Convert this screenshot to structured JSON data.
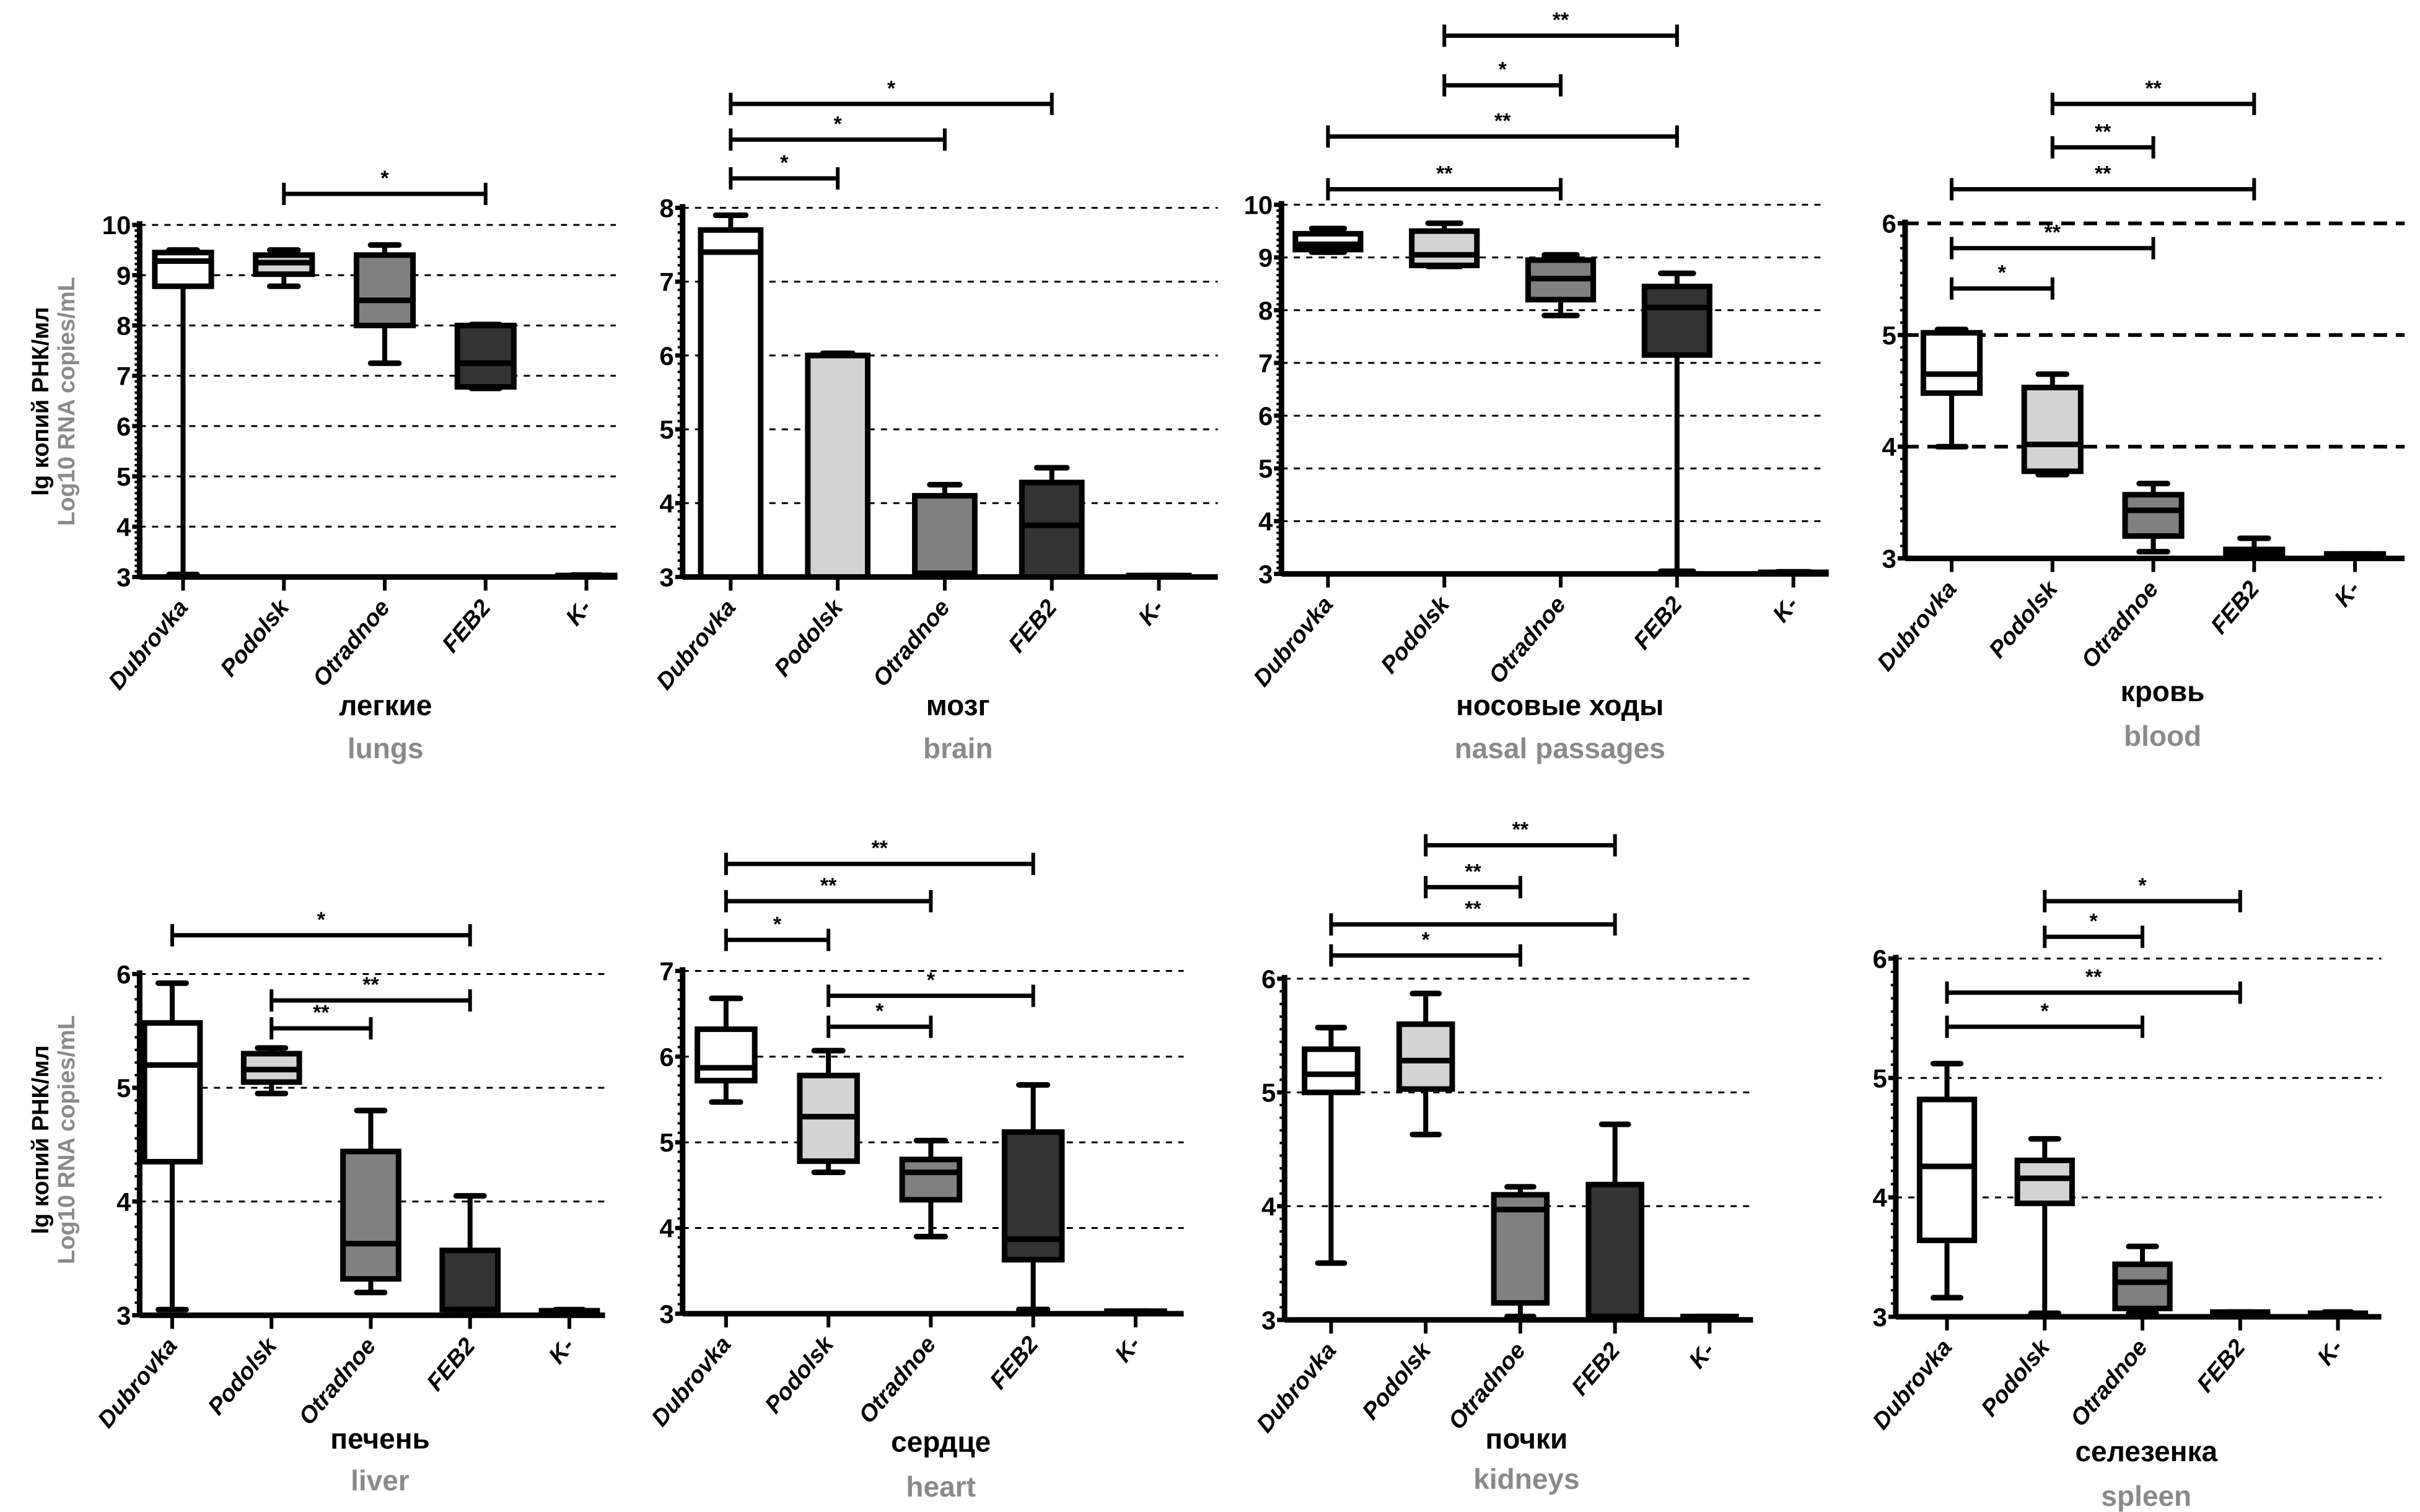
{
  "figure": {
    "y_axis_label_ru": "lg копий РНК/мл",
    "y_axis_label_en": "Log10 RNA copies/mL"
  },
  "chart_data": [
    {
      "type": "boxplot",
      "title_ru": "легкие",
      "title_en": "lungs",
      "ylim": [
        3,
        10
      ],
      "yticks": [
        3,
        4,
        5,
        6,
        7,
        8,
        9,
        10
      ],
      "grid": "dashed-horizontal",
      "categories": [
        "Dubrovka",
        "Podolsk",
        "Otradnoe",
        "FEB2",
        "K-"
      ],
      "boxes": [
        {
          "min": 3.05,
          "q1": 8.78,
          "median": 9.28,
          "q3": 9.45,
          "max": 9.5
        },
        {
          "min": 8.78,
          "q1": 9.02,
          "median": 9.25,
          "q3": 9.4,
          "max": 9.5
        },
        {
          "min": 7.25,
          "q1": 8.0,
          "median": 8.5,
          "q3": 9.4,
          "max": 9.6
        },
        {
          "min": 6.75,
          "q1": 6.78,
          "median": 7.25,
          "q3": 8.0,
          "max": 8.02
        },
        {
          "min": 3.0,
          "q1": 3.0,
          "median": 3.02,
          "q3": 3.03,
          "max": 3.04
        }
      ],
      "significance": [
        {
          "from": 1,
          "to": 3,
          "label": "*",
          "level": 0
        }
      ]
    },
    {
      "type": "boxplot",
      "title_ru": "мозг",
      "title_en": "brain",
      "ylim": [
        3,
        8
      ],
      "yticks": [
        3,
        4,
        5,
        6,
        7,
        8
      ],
      "grid": "dashed-horizontal",
      "categories": [
        "Dubrovka",
        "Podolsk",
        "Otradnoe",
        "FEB2",
        "K-"
      ],
      "boxes": [
        {
          "min": 3.0,
          "q1": 3.0,
          "median": 7.4,
          "q3": 7.7,
          "max": 7.9
        },
        {
          "min": 3.0,
          "q1": 3.0,
          "median": 6.0,
          "q3": 6.0,
          "max": 6.03
        },
        {
          "min": 3.0,
          "q1": 3.0,
          "median": 3.05,
          "q3": 4.1,
          "max": 4.25
        },
        {
          "min": 3.0,
          "q1": 3.0,
          "median": 3.7,
          "q3": 4.28,
          "max": 4.48
        },
        {
          "min": 3.0,
          "q1": 3.0,
          "median": 3.01,
          "q3": 3.02,
          "max": 3.02
        }
      ],
      "significance": [
        {
          "from": 0,
          "to": 1,
          "label": "*",
          "level": 0
        },
        {
          "from": 0,
          "to": 2,
          "label": "*",
          "level": 1
        },
        {
          "from": 0,
          "to": 3,
          "label": "*",
          "level": 2
        }
      ]
    },
    {
      "type": "boxplot",
      "title_ru": "носовые ходы",
      "title_en": "nasal passages",
      "ylim": [
        3,
        10
      ],
      "yticks": [
        3,
        4,
        5,
        6,
        7,
        8,
        9,
        10
      ],
      "grid": "dashed-horizontal",
      "categories": [
        "Dubrovka",
        "Podolsk",
        "Otradnoe",
        "FEB2",
        "K-"
      ],
      "boxes": [
        {
          "min": 9.1,
          "q1": 9.15,
          "median": 9.25,
          "q3": 9.45,
          "max": 9.55
        },
        {
          "min": 8.83,
          "q1": 8.85,
          "median": 9.05,
          "q3": 9.5,
          "max": 9.65
        },
        {
          "min": 7.9,
          "q1": 8.2,
          "median": 8.6,
          "q3": 8.95,
          "max": 9.05
        },
        {
          "min": 3.05,
          "q1": 7.15,
          "median": 8.05,
          "q3": 8.45,
          "max": 8.7
        },
        {
          "min": 3.0,
          "q1": 3.0,
          "median": 3.02,
          "q3": 3.03,
          "max": 3.04
        }
      ],
      "significance": [
        {
          "from": 0,
          "to": 2,
          "label": "**",
          "level": 0
        },
        {
          "from": 0,
          "to": 3,
          "label": "**",
          "level": 1
        },
        {
          "from": 1,
          "to": 2,
          "label": "*",
          "level": 2
        },
        {
          "from": 1,
          "to": 3,
          "label": "**",
          "level": 3
        }
      ]
    },
    {
      "type": "boxplot",
      "title_ru": "кровь",
      "title_en": "blood",
      "ylim": [
        3,
        6
      ],
      "yticks": [
        3,
        4,
        5,
        6
      ],
      "grid": "dashed-horizontal-bold",
      "categories": [
        "Dubrovka",
        "Podolsk",
        "Otradnoe",
        "FEB2",
        "K-"
      ],
      "boxes": [
        {
          "min": 4.0,
          "q1": 4.48,
          "median": 4.65,
          "q3": 5.02,
          "max": 5.05
        },
        {
          "min": 3.75,
          "q1": 3.78,
          "median": 4.02,
          "q3": 4.53,
          "max": 4.65
        },
        {
          "min": 3.06,
          "q1": 3.2,
          "median": 3.43,
          "q3": 3.57,
          "max": 3.67
        },
        {
          "min": 3.02,
          "q1": 3.02,
          "median": 3.05,
          "q3": 3.08,
          "max": 3.18
        },
        {
          "min": 3.01,
          "q1": 3.02,
          "median": 3.03,
          "q3": 3.04,
          "max": 3.04
        }
      ],
      "significance": [
        {
          "from": 0,
          "to": 1,
          "label": "*",
          "level": 0
        },
        {
          "from": 0,
          "to": 2,
          "label": "**",
          "level": 1
        },
        {
          "from": 0,
          "to": 3,
          "label": "**",
          "level": 2
        },
        {
          "from": 1,
          "to": 2,
          "label": "**",
          "level": 3
        },
        {
          "from": 1,
          "to": 3,
          "label": "**",
          "level": 4
        }
      ]
    },
    {
      "type": "boxplot",
      "title_ru": "печень",
      "title_en": "liver",
      "ylim": [
        3,
        6
      ],
      "yticks": [
        3,
        4,
        5,
        6
      ],
      "grid": "dashed-horizontal",
      "categories": [
        "Dubrovka",
        "Podolsk",
        "Otradnoe",
        "FEB2",
        "K-"
      ],
      "boxes": [
        {
          "min": 3.05,
          "q1": 4.35,
          "median": 5.2,
          "q3": 5.57,
          "max": 5.92
        },
        {
          "min": 4.95,
          "q1": 5.05,
          "median": 5.16,
          "q3": 5.3,
          "max": 5.35
        },
        {
          "min": 3.2,
          "q1": 3.32,
          "median": 3.63,
          "q3": 4.44,
          "max": 4.8
        },
        {
          "min": 3.05,
          "q1": 3.05,
          "median": 3.05,
          "q3": 3.57,
          "max": 4.05
        },
        {
          "min": 3.01,
          "q1": 3.02,
          "median": 3.03,
          "q3": 3.04,
          "max": 3.05
        }
      ],
      "significance": [
        {
          "from": 1,
          "to": 2,
          "label": "**",
          "level": 0
        },
        {
          "from": 1,
          "to": 3,
          "label": "**",
          "level": 1
        },
        {
          "from": 0,
          "to": 3,
          "label": "*",
          "level": 2
        }
      ]
    },
    {
      "type": "boxplot",
      "title_ru": "сердце",
      "title_en": "heart",
      "ylim": [
        3,
        7
      ],
      "yticks": [
        3,
        4,
        5,
        6,
        7
      ],
      "grid": "dashed-horizontal",
      "categories": [
        "Dubrovka",
        "Podolsk",
        "Otradnoe",
        "FEB2",
        "K-"
      ],
      "boxes": [
        {
          "min": 5.47,
          "q1": 5.72,
          "median": 5.87,
          "q3": 6.32,
          "max": 6.68
        },
        {
          "min": 4.65,
          "q1": 4.78,
          "median": 5.3,
          "q3": 5.78,
          "max": 6.07
        },
        {
          "min": 3.9,
          "q1": 4.33,
          "median": 4.65,
          "q3": 4.8,
          "max": 5.02
        },
        {
          "min": 3.05,
          "q1": 3.63,
          "median": 3.87,
          "q3": 5.12,
          "max": 5.67
        },
        {
          "min": 3.01,
          "q1": 3.02,
          "median": 3.02,
          "q3": 3.03,
          "max": 3.03
        }
      ],
      "significance": [
        {
          "from": 1,
          "to": 2,
          "label": "*",
          "level": 0
        },
        {
          "from": 1,
          "to": 3,
          "label": "*",
          "level": 1
        },
        {
          "from": 0,
          "to": 1,
          "label": "*",
          "level": 2
        },
        {
          "from": 0,
          "to": 2,
          "label": "**",
          "level": 3
        },
        {
          "from": 0,
          "to": 3,
          "label": "**",
          "level": 4
        }
      ]
    },
    {
      "type": "boxplot",
      "title_ru": "почки",
      "title_en": "kidneys",
      "ylim": [
        3,
        6
      ],
      "yticks": [
        3,
        4,
        5,
        6
      ],
      "grid": "dashed-horizontal",
      "categories": [
        "Dubrovka",
        "Podolsk",
        "Otradnoe",
        "FEB2",
        "K-"
      ],
      "boxes": [
        {
          "min": 3.5,
          "q1": 5.0,
          "median": 5.16,
          "q3": 5.38,
          "max": 5.57
        },
        {
          "min": 4.63,
          "q1": 5.03,
          "median": 5.28,
          "q3": 5.6,
          "max": 5.87
        },
        {
          "min": 3.03,
          "q1": 3.15,
          "median": 3.97,
          "q3": 4.1,
          "max": 4.17
        },
        {
          "min": 3.03,
          "q1": 3.03,
          "median": 3.03,
          "q3": 4.19,
          "max": 4.72
        },
        {
          "min": 3.01,
          "q1": 3.02,
          "median": 3.02,
          "q3": 3.03,
          "max": 3.03
        }
      ],
      "significance": [
        {
          "from": 0,
          "to": 2,
          "label": "*",
          "level": 0
        },
        {
          "from": 0,
          "to": 3,
          "label": "**",
          "level": 1
        },
        {
          "from": 1,
          "to": 2,
          "label": "**",
          "level": 2
        },
        {
          "from": 1,
          "to": 3,
          "label": "**",
          "level": 3
        }
      ]
    },
    {
      "type": "boxplot",
      "title_ru": "селезенка",
      "title_en": "spleen",
      "ylim": [
        3,
        6
      ],
      "yticks": [
        3,
        4,
        5,
        6
      ],
      "grid": "dashed-horizontal",
      "categories": [
        "Dubrovka",
        "Podolsk",
        "Otradnoe",
        "FEB2",
        "K-"
      ],
      "boxes": [
        {
          "min": 3.16,
          "q1": 3.64,
          "median": 4.26,
          "q3": 4.82,
          "max": 5.12
        },
        {
          "min": 3.03,
          "q1": 3.95,
          "median": 4.16,
          "q3": 4.31,
          "max": 4.49
        },
        {
          "min": 3.03,
          "q1": 3.07,
          "median": 3.29,
          "q3": 3.44,
          "max": 3.59
        },
        {
          "min": 3.02,
          "q1": 3.02,
          "median": 3.03,
          "q3": 3.04,
          "max": 3.04
        },
        {
          "min": 3.01,
          "q1": 3.02,
          "median": 3.02,
          "q3": 3.03,
          "max": 3.04
        }
      ],
      "significance": [
        {
          "from": 0,
          "to": 2,
          "label": "*",
          "level": 0
        },
        {
          "from": 0,
          "to": 3,
          "label": "**",
          "level": 1
        },
        {
          "from": 1,
          "to": 2,
          "label": "*",
          "level": 2
        },
        {
          "from": 1,
          "to": 3,
          "label": "*",
          "level": 3
        }
      ]
    }
  ],
  "colors": {
    "fills": [
      "#ffffff",
      "#d3d3d3",
      "#808080",
      "#333333",
      "#000000"
    ],
    "title_en": "#8a8a8a",
    "axis": "#000000"
  }
}
